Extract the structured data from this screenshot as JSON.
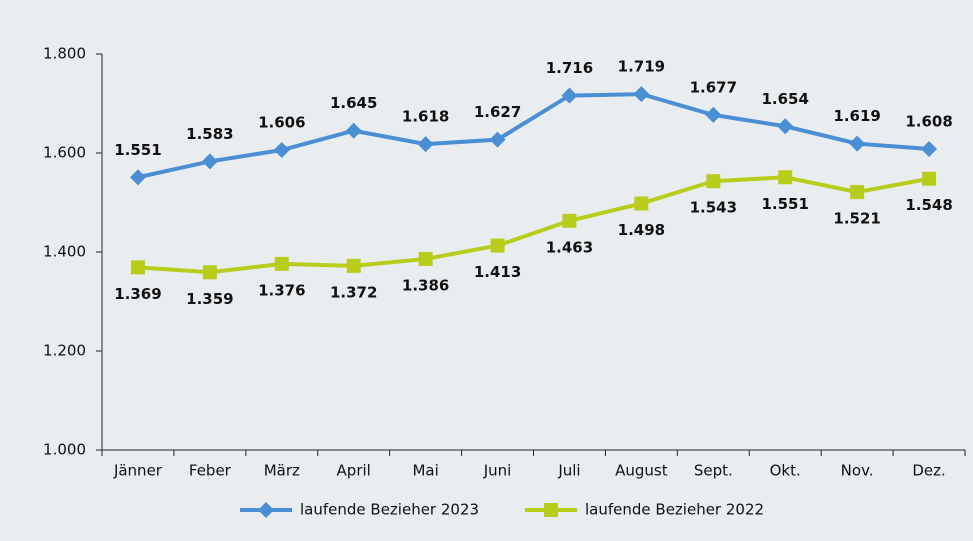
{
  "chart_data": {
    "type": "line",
    "categories": [
      "Jänner",
      "Feber",
      "März",
      "April",
      "Mai",
      "Juni",
      "Juli",
      "August",
      "Sept.",
      "Okt.",
      "Nov.",
      "Dez."
    ],
    "series": [
      {
        "name": "laufende Bezieher 2023",
        "color": "#4a8fd4",
        "marker": "diamond",
        "values": [
          1551,
          1583,
          1606,
          1645,
          1618,
          1627,
          1716,
          1719,
          1677,
          1654,
          1619,
          1608
        ],
        "value_labels": [
          "1.551",
          "1.583",
          "1.606",
          "1.645",
          "1.618",
          "1.627",
          "1.716",
          "1.719",
          "1.677",
          "1.654",
          "1.619",
          "1.608"
        ]
      },
      {
        "name": "laufende Bezieher 2022",
        "color": "#b8cc1c",
        "marker": "square",
        "values": [
          1369,
          1359,
          1376,
          1372,
          1386,
          1413,
          1463,
          1498,
          1543,
          1551,
          1521,
          1548
        ],
        "value_labels": [
          "1.369",
          "1.359",
          "1.376",
          "1.372",
          "1.386",
          "1.413",
          "1.463",
          "1.498",
          "1.543",
          "1.551",
          "1.521",
          "1.548"
        ]
      }
    ],
    "ylim": [
      1000,
      1800
    ],
    "yticks": [
      {
        "value": 1000,
        "label": "1.000"
      },
      {
        "value": 1200,
        "label": "1.200"
      },
      {
        "value": 1400,
        "label": "1.400"
      },
      {
        "value": 1600,
        "label": "1.600"
      },
      {
        "value": 1800,
        "label": "1.800"
      }
    ],
    "grid": false,
    "legend": "bottom"
  }
}
